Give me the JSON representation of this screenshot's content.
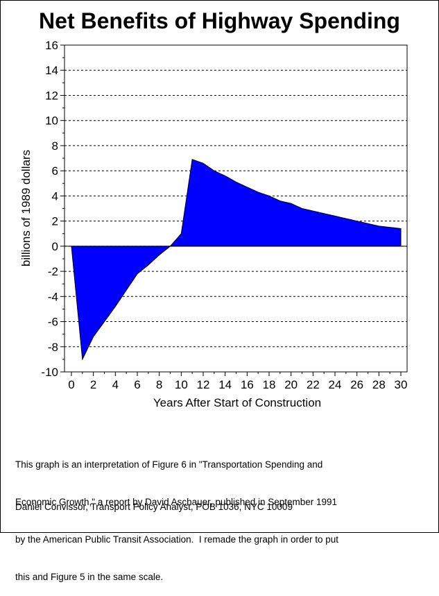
{
  "chart_data": {
    "type": "area",
    "title": "Net Benefits of Highway Spending",
    "xlabel": "Years After Start of Construction",
    "ylabel": "billions of 1989 dollars",
    "xlim": [
      0,
      30
    ],
    "ylim": [
      -10,
      16
    ],
    "x_ticks": [
      0,
      2,
      4,
      6,
      8,
      10,
      12,
      14,
      16,
      18,
      20,
      22,
      24,
      26,
      28,
      30
    ],
    "y_ticks": [
      -10,
      -8,
      -6,
      -4,
      -2,
      0,
      2,
      4,
      6,
      8,
      10,
      12,
      14,
      16
    ],
    "grid": "horizontal dashed",
    "fill_color": "#0000ff",
    "series": [
      {
        "x": [
          0,
          1,
          2,
          3,
          4,
          5,
          6,
          7,
          8,
          9,
          10,
          11,
          12,
          13,
          14,
          15,
          16,
          17,
          18,
          19,
          20,
          21,
          22,
          23,
          24,
          25,
          26,
          27,
          28,
          29,
          30
        ],
        "values": [
          0,
          -9,
          -7.2,
          -6,
          -4.8,
          -3.5,
          -2.2,
          -1.5,
          -0.7,
          0,
          1,
          6.9,
          6.6,
          6,
          5.6,
          5.1,
          4.7,
          4.3,
          4,
          3.6,
          3.4,
          3,
          2.8,
          2.6,
          2.4,
          2.2,
          2,
          1.8,
          1.6,
          1.5,
          1.4
        ]
      }
    ]
  },
  "note": {
    "lines": [
      "This graph is an interpretation of Figure 6 in \"Transportation Spending and",
      "Economic Growth,\" a report by David Aschauer, published in September 1991",
      "by the American Public Transit Association.  I remade the graph in order to put",
      "this and Figure 5 in the same scale."
    ],
    "credit": "Daniel Convissor, Transport Policy Analyst, POB 1036, NYC 10009"
  }
}
